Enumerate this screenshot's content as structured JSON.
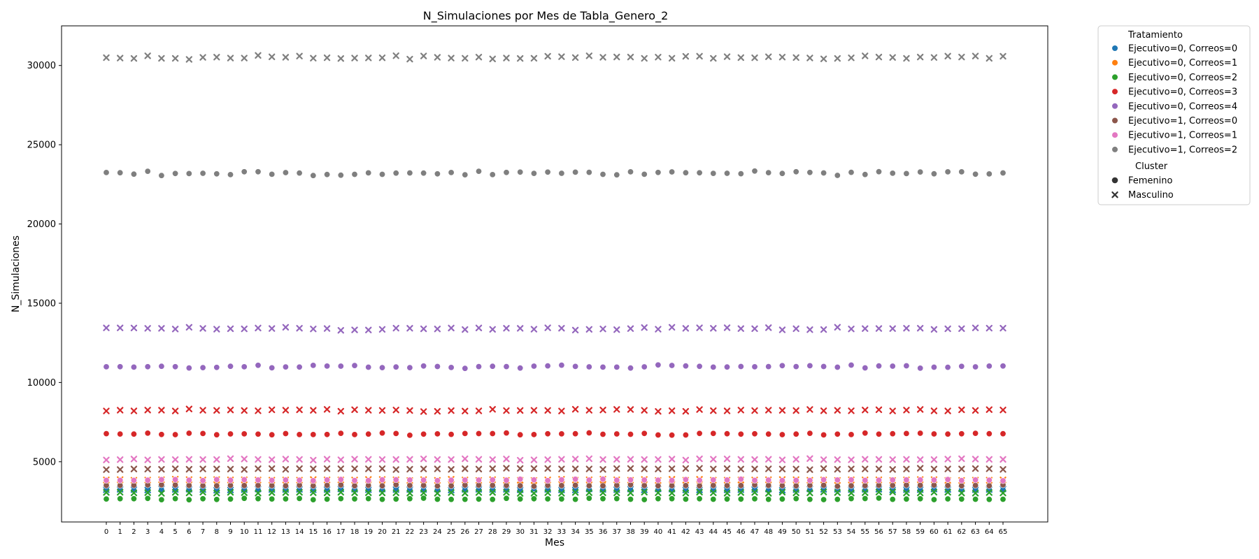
{
  "chart_data": {
    "type": "scatter",
    "title": "N_Simulaciones por Mes de Tabla_Genero_2",
    "xlabel": "Mes",
    "ylabel": "N_Simulaciones",
    "x_range": [
      0,
      65
    ],
    "ylim": [
      0,
      32000
    ],
    "yticks": [
      5000,
      10000,
      15000,
      20000,
      25000,
      30000
    ],
    "grid": false,
    "legend_placement": "outside-top-right",
    "legend": {
      "hue_title": "Tratamiento",
      "style_title": "Cluster",
      "style_entries": [
        {
          "name": "Femenino",
          "marker": "circle"
        },
        {
          "name": "Masculino",
          "marker": "x"
        }
      ]
    },
    "series": [
      {
        "name": "Ejecutivo=0, Correos=0",
        "color": "#1f77b4",
        "levels": {
          "Femenino": 3250,
          "Masculino": 3250
        }
      },
      {
        "name": "Ejecutivo=0, Correos=1",
        "color": "#ff7f0e",
        "levels": {
          "Femenino": 3650,
          "Masculino": 3850
        }
      },
      {
        "name": "Ejecutivo=0, Correos=2",
        "color": "#2ca02c",
        "levels": {
          "Femenino": 2650,
          "Masculino": 3050
        }
      },
      {
        "name": "Ejecutivo=0, Correos=3",
        "color": "#d62728",
        "levels": {
          "Femenino": 6750,
          "Masculino": 8250
        }
      },
      {
        "name": "Ejecutivo=0, Correos=4",
        "color": "#9467bd",
        "levels": {
          "Femenino": 11000,
          "Masculino": 13400
        }
      },
      {
        "name": "Ejecutivo=1, Correos=0",
        "color": "#8c564b",
        "levels": {
          "Femenino": 3500,
          "Masculino": 4550
        }
      },
      {
        "name": "Ejecutivo=1, Correos=1",
        "color": "#e377c2",
        "levels": {
          "Femenino": 3850,
          "Masculino": 5150
        }
      },
      {
        "name": "Ejecutivo=1, Correos=2",
        "color": "#7f7f7f",
        "levels": {
          "Femenino": 23200,
          "Masculino": 30500
        }
      }
    ]
  }
}
